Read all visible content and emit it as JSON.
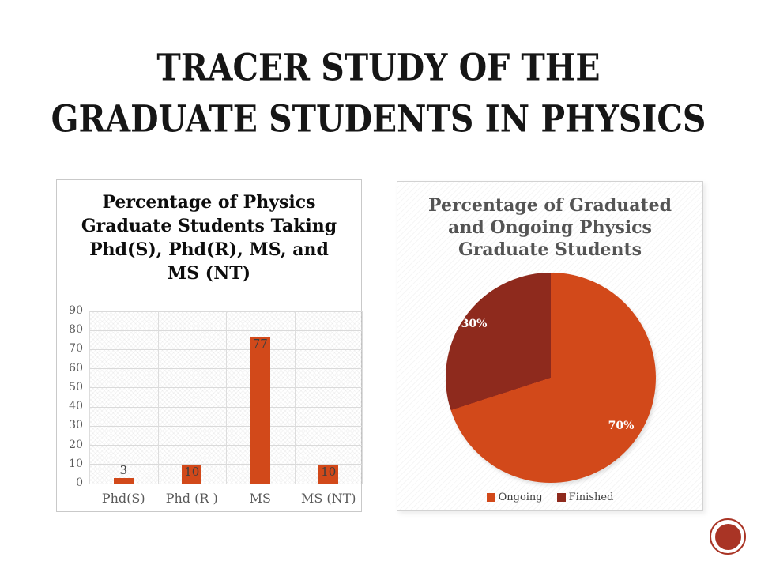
{
  "slide_title": {
    "line1": "TRACER STUDY OF THE",
    "line2": "GRADUATE STUDENTS IN PHYSICS"
  },
  "colors": {
    "accent_orange": "#D2491A",
    "accent_dark_red": "#8E2A1D",
    "stamp_red": "#A93425",
    "gridline": "#DADADA",
    "axis_text": "#595959",
    "data_label_text": "#3F3F3F"
  },
  "bar_chart": {
    "title_lines": [
      "Percentage of Physics",
      "Graduate Students Taking",
      "Phd(S), Phd(R), MS, and",
      "MS (NT)"
    ],
    "y_ticks": [
      90,
      80,
      70,
      60,
      50,
      40,
      30,
      20,
      10,
      0
    ],
    "categories": [
      "Phd(S)",
      "Phd (R )",
      "MS",
      "MS (NT)"
    ],
    "values": [
      3,
      10,
      77,
      10
    ],
    "data_labels": [
      "3",
      "10",
      "77",
      "10"
    ],
    "bar_color": "#D2491A"
  },
  "pie_chart": {
    "title_lines": [
      "Percentage of Graduated",
      "and Ongoing Physics",
      "Graduate Students"
    ],
    "slices": [
      {
        "label": "Ongoing",
        "value": 70,
        "pct_label": "70%",
        "color": "#D2491A"
      },
      {
        "label": "Finished",
        "value": 30,
        "pct_label": "30%",
        "color": "#8E2A1D"
      }
    ]
  },
  "chart_data": [
    {
      "type": "bar",
      "title": "Percentage of Physics Graduate Students Taking Phd(S), Phd(R), MS, and MS (NT)",
      "categories": [
        "Phd(S)",
        "Phd (R )",
        "MS",
        "MS (NT)"
      ],
      "values": [
        3,
        10,
        77,
        10
      ],
      "data_labels": [
        "3",
        "10",
        "77",
        "10"
      ],
      "xlabel": "",
      "ylabel": "",
      "ylim": [
        0,
        90
      ],
      "ytick_step": 10,
      "grid": true,
      "bar_color": "#D2491A",
      "plot_background": "patterned-crosshatch"
    },
    {
      "type": "pie",
      "title": "Percentage of Graduated and Ongoing Physics Graduate Students",
      "labels": [
        "Ongoing",
        "Finished"
      ],
      "values": [
        70,
        30
      ],
      "slice_labels": [
        "70%",
        "30%"
      ],
      "colors": [
        "#D2491A",
        "#8E2A1D"
      ],
      "start_angle": "top",
      "direction": "clockwise",
      "legend_position": "bottom"
    }
  ]
}
